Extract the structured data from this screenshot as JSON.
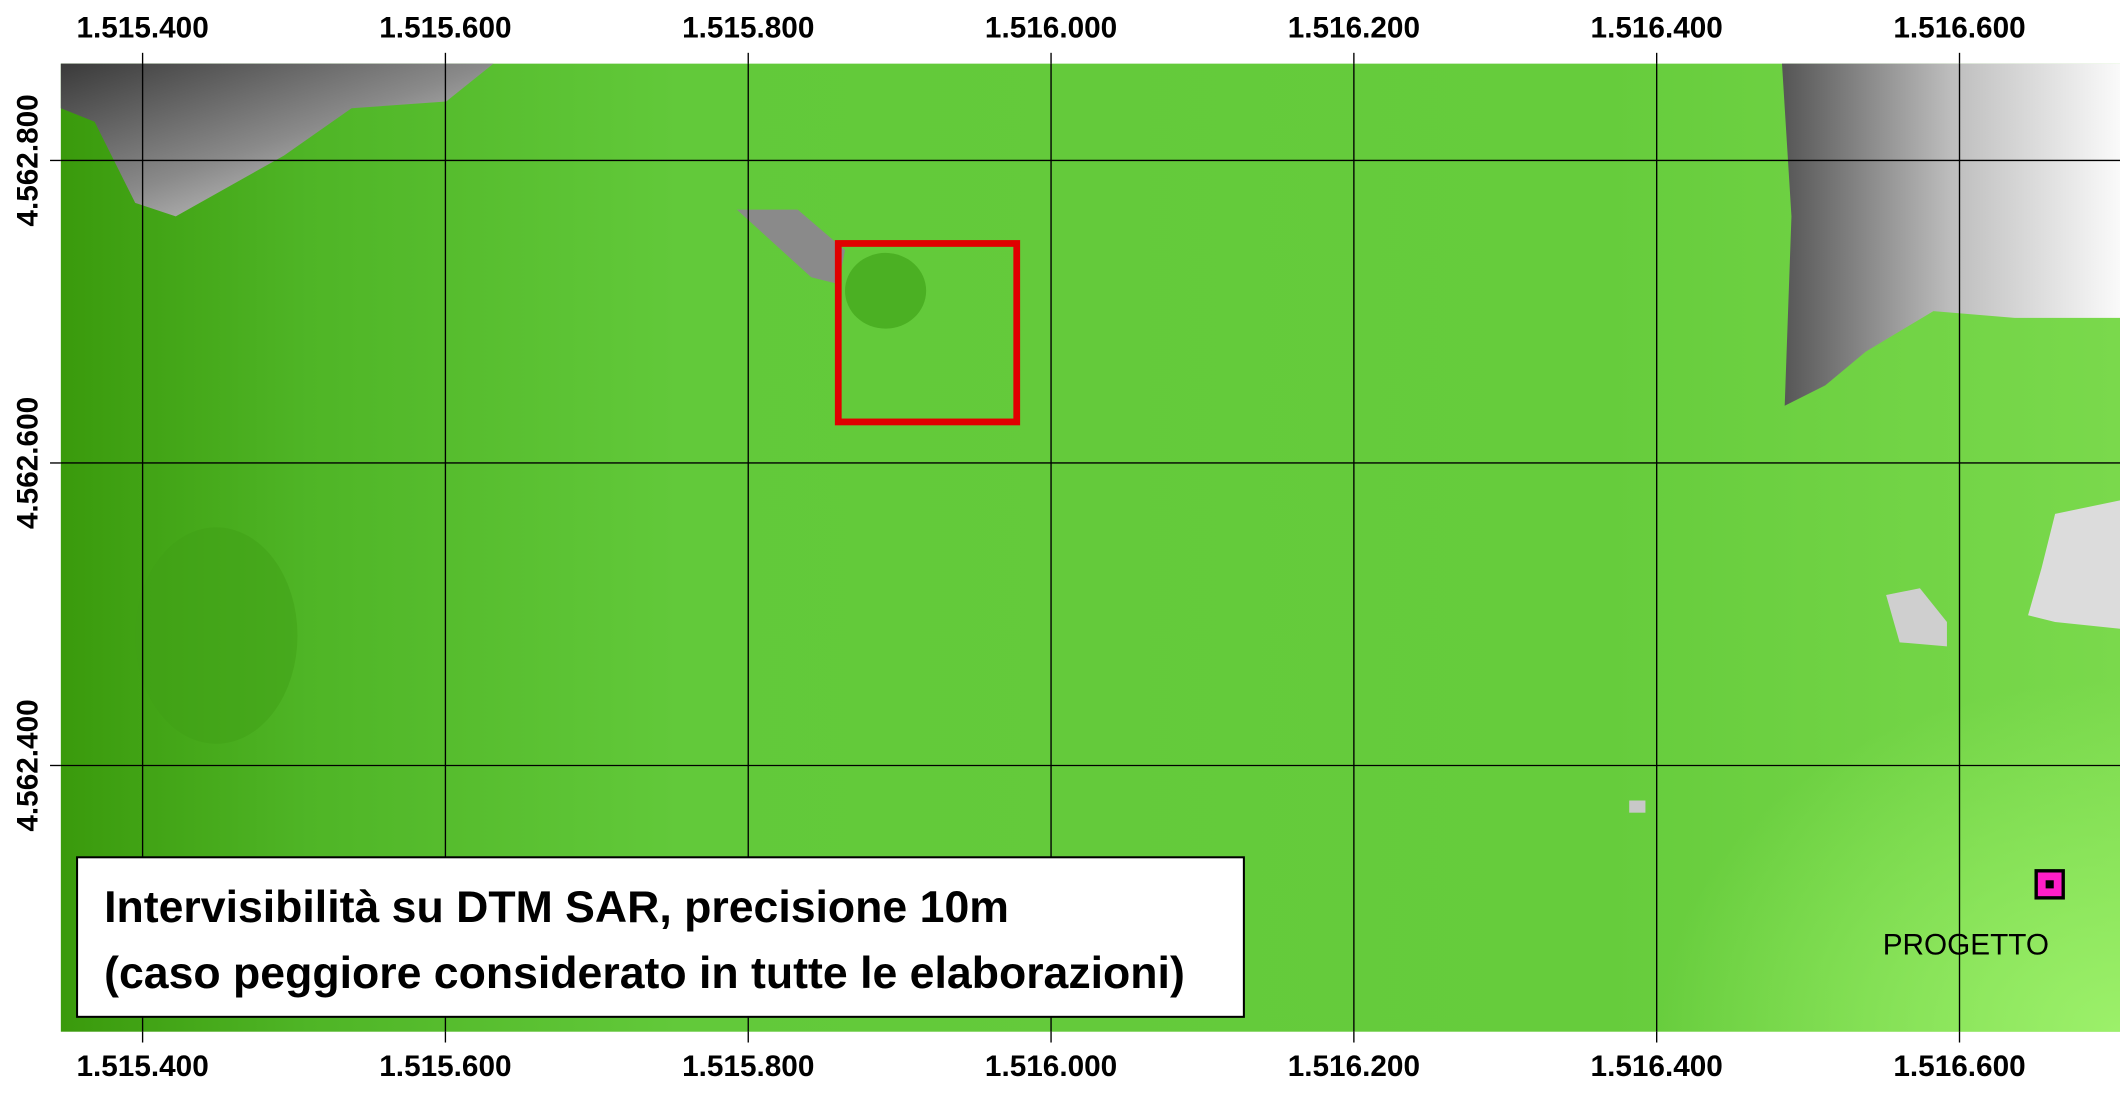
{
  "map": {
    "xlim": [
      1515346,
      1516706
    ],
    "ylim": [
      4562224,
      4562864
    ],
    "x_ticks": [
      {
        "value": 1515400,
        "label": "1.515.400"
      },
      {
        "value": 1515600,
        "label": "1.515.600"
      },
      {
        "value": 1515800,
        "label": "1.515.800"
      },
      {
        "value": 1516000,
        "label": "1.516.000"
      },
      {
        "value": 1516200,
        "label": "1.516.200"
      },
      {
        "value": 1516400,
        "label": "1.516.400"
      },
      {
        "value": 1516600,
        "label": "1.516.600"
      }
    ],
    "y_ticks": [
      {
        "value": 4562800,
        "label": "4.562.800"
      },
      {
        "value": 4562600,
        "label": "4.562.600"
      },
      {
        "value": 4562400,
        "label": "4.562.400"
      }
    ],
    "caption": [
      "Intervisibilità su DTM SAR, precisione 10m",
      "(caso peggiore considerato in tutte le elaborazioni)"
    ],
    "marker_label": "PROGETTO"
  }
}
